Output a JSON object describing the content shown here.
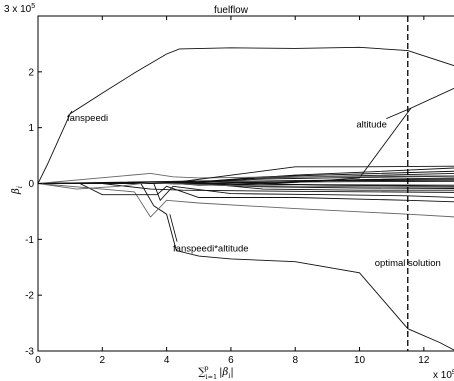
{
  "chart_data": {
    "type": "line",
    "title": "fuelflow",
    "xlabel": "∑",
    "xlabel_sub": "i=1",
    "xlabel_sup": "p",
    "xlabel_rest": "|β",
    "xlabel_rest_sub": "i",
    "xlabel_rest_end": "|",
    "ylabel": "β",
    "ylabel_sub": "i",
    "y_multiplier_base": "3 x 10",
    "y_multiplier_exp": "5",
    "x_multiplier_base": "x 10",
    "x_multiplier_exp": "5",
    "xlim": [
      0,
      13
    ],
    "ylim": [
      -3,
      3
    ],
    "x_ticks": [
      "0",
      "2",
      "4",
      "6",
      "8",
      "10",
      "12"
    ],
    "x_tick_values": [
      0,
      2,
      4,
      6,
      8,
      10,
      12
    ],
    "y_ticks": [
      "-3",
      "-2",
      "-1",
      "0",
      "1",
      "2"
    ],
    "y_tick_values": [
      -3,
      -2,
      -1,
      0,
      1,
      2
    ],
    "grid": false,
    "vline": {
      "x": 11.5,
      "label": "optimal solution",
      "style": "dashed"
    },
    "annotations": [
      {
        "text": "fanspeedi",
        "point": [
          1.0,
          1.25
        ],
        "text_at": [
          0.9,
          1.12
        ]
      },
      {
        "text": "altitude",
        "point": [
          11.6,
          1.35
        ],
        "text_at": [
          9.9,
          1.0
        ]
      },
      {
        "text": "fanspeedi*altitude",
        "point": [
          4.1,
          -0.55
        ],
        "text_at": [
          4.2,
          -1.22
        ]
      }
    ],
    "series": [
      {
        "values": [
          [
            0,
            0
          ],
          [
            0.3,
            0.35
          ],
          [
            1.0,
            1.25
          ],
          [
            2,
            1.62
          ],
          [
            3,
            1.98
          ],
          [
            4,
            2.32
          ],
          [
            4.4,
            2.41
          ],
          [
            6,
            2.43
          ],
          [
            8,
            2.42
          ],
          [
            10,
            2.44
          ],
          [
            11.5,
            2.38
          ],
          [
            13,
            2.1
          ]
        ]
      },
      {
        "values": [
          [
            0,
            0
          ],
          [
            4,
            0
          ],
          [
            6,
            -0.02
          ],
          [
            8,
            0.02
          ],
          [
            10,
            0.1
          ],
          [
            11.6,
            1.35
          ],
          [
            13,
            1.72
          ]
        ]
      },
      {
        "values": [
          [
            0,
            0
          ],
          [
            3.2,
            0
          ],
          [
            3.6,
            -0.4
          ],
          [
            4,
            -0.55
          ],
          [
            4.3,
            -1.2
          ],
          [
            5,
            -1.3
          ],
          [
            6,
            -1.35
          ],
          [
            8,
            -1.4
          ],
          [
            10,
            -1.6
          ],
          [
            11.5,
            -2.6
          ],
          [
            12.5,
            -2.85
          ],
          [
            13,
            -3.0
          ]
        ]
      },
      {
        "values": [
          [
            0,
            0
          ],
          [
            3.0,
            -0.15
          ],
          [
            3.5,
            -0.6
          ],
          [
            4,
            -0.3
          ],
          [
            5,
            -0.35
          ],
          [
            8,
            -0.45
          ],
          [
            11.5,
            -0.55
          ],
          [
            13,
            -0.6
          ]
        ]
      },
      {
        "values": [
          [
            0,
            0
          ],
          [
            1.3,
            0
          ],
          [
            2,
            -0.2
          ],
          [
            3.7,
            -0.2
          ],
          [
            4,
            -0.05
          ],
          [
            5,
            -0.25
          ],
          [
            8,
            -0.25
          ],
          [
            11.5,
            -0.3
          ],
          [
            13,
            -0.33
          ]
        ]
      },
      {
        "values": [
          [
            0,
            0
          ],
          [
            3.6,
            0
          ],
          [
            3.8,
            -0.3
          ],
          [
            4.2,
            -0.05
          ],
          [
            6,
            -0.18
          ],
          [
            9,
            -0.2
          ],
          [
            11.5,
            -0.22
          ],
          [
            13,
            -0.25
          ]
        ]
      },
      {
        "values": [
          [
            0,
            0
          ],
          [
            2,
            0
          ],
          [
            3.5,
            -0.1
          ],
          [
            4.5,
            -0.12
          ],
          [
            8,
            -0.14
          ],
          [
            13,
            -0.16
          ]
        ]
      },
      {
        "values": [
          [
            0,
            0
          ],
          [
            4,
            0.0
          ],
          [
            7,
            -0.06
          ],
          [
            10,
            -0.08
          ],
          [
            13,
            -0.09
          ]
        ]
      },
      {
        "values": [
          [
            0,
            0
          ],
          [
            4.3,
            0
          ],
          [
            5,
            -0.03
          ],
          [
            8,
            -0.02
          ],
          [
            13,
            -0.03
          ]
        ]
      },
      {
        "values": [
          [
            0,
            0
          ],
          [
            4.5,
            0
          ],
          [
            6,
            0.02
          ],
          [
            9,
            0.03
          ],
          [
            13,
            0.04
          ]
        ]
      },
      {
        "values": [
          [
            0,
            0
          ],
          [
            4,
            0.02
          ],
          [
            6,
            0.04
          ],
          [
            9,
            0.06
          ],
          [
            13,
            0.08
          ]
        ]
      },
      {
        "values": [
          [
            0,
            0
          ],
          [
            4.6,
            0.01
          ],
          [
            7,
            0.08
          ],
          [
            10,
            0.11
          ],
          [
            13,
            0.13
          ]
        ]
      },
      {
        "values": [
          [
            0,
            0
          ],
          [
            4.8,
            0.02
          ],
          [
            7,
            0.1
          ],
          [
            10,
            0.14
          ],
          [
            13,
            0.18
          ]
        ]
      },
      {
        "values": [
          [
            0,
            0
          ],
          [
            5,
            0.03
          ],
          [
            7,
            0.12
          ],
          [
            10,
            0.17
          ],
          [
            13,
            0.22
          ]
        ]
      },
      {
        "values": [
          [
            0,
            0
          ],
          [
            5.5,
            0.05
          ],
          [
            8,
            0.15
          ],
          [
            10,
            0.2
          ],
          [
            13,
            0.28
          ]
        ]
      },
      {
        "values": [
          [
            0,
            0
          ],
          [
            3.5,
            0.18
          ],
          [
            4.2,
            0.12
          ],
          [
            5,
            0.1
          ],
          [
            8,
            0.12
          ],
          [
            13,
            0.14
          ]
        ]
      },
      {
        "values": [
          [
            0,
            0
          ],
          [
            5.2,
            0
          ],
          [
            7,
            -0.1
          ],
          [
            10,
            -0.12
          ],
          [
            13,
            -0.12
          ]
        ]
      },
      {
        "values": [
          [
            0,
            0
          ],
          [
            6,
            0.01
          ],
          [
            9,
            -0.03
          ],
          [
            13,
            -0.05
          ]
        ]
      },
      {
        "values": [
          [
            0,
            0
          ],
          [
            5.8,
            0
          ],
          [
            9,
            0.05
          ],
          [
            13,
            0.06
          ]
        ]
      },
      {
        "values": [
          [
            0,
            0
          ],
          [
            6.5,
            0.01
          ],
          [
            10,
            0.07
          ],
          [
            13,
            0.1
          ]
        ]
      },
      {
        "values": [
          [
            0,
            0
          ],
          [
            4,
            0
          ],
          [
            8,
            0.3
          ],
          [
            10,
            0.3
          ],
          [
            13,
            0.31
          ]
        ]
      },
      {
        "values": [
          [
            0,
            0
          ],
          [
            1.2,
            -0.1
          ],
          [
            2.5,
            -0.05
          ],
          [
            3.5,
            0.02
          ],
          [
            4,
            0.0
          ],
          [
            6,
            -0.04
          ],
          [
            13,
            -0.07
          ]
        ]
      }
    ]
  }
}
